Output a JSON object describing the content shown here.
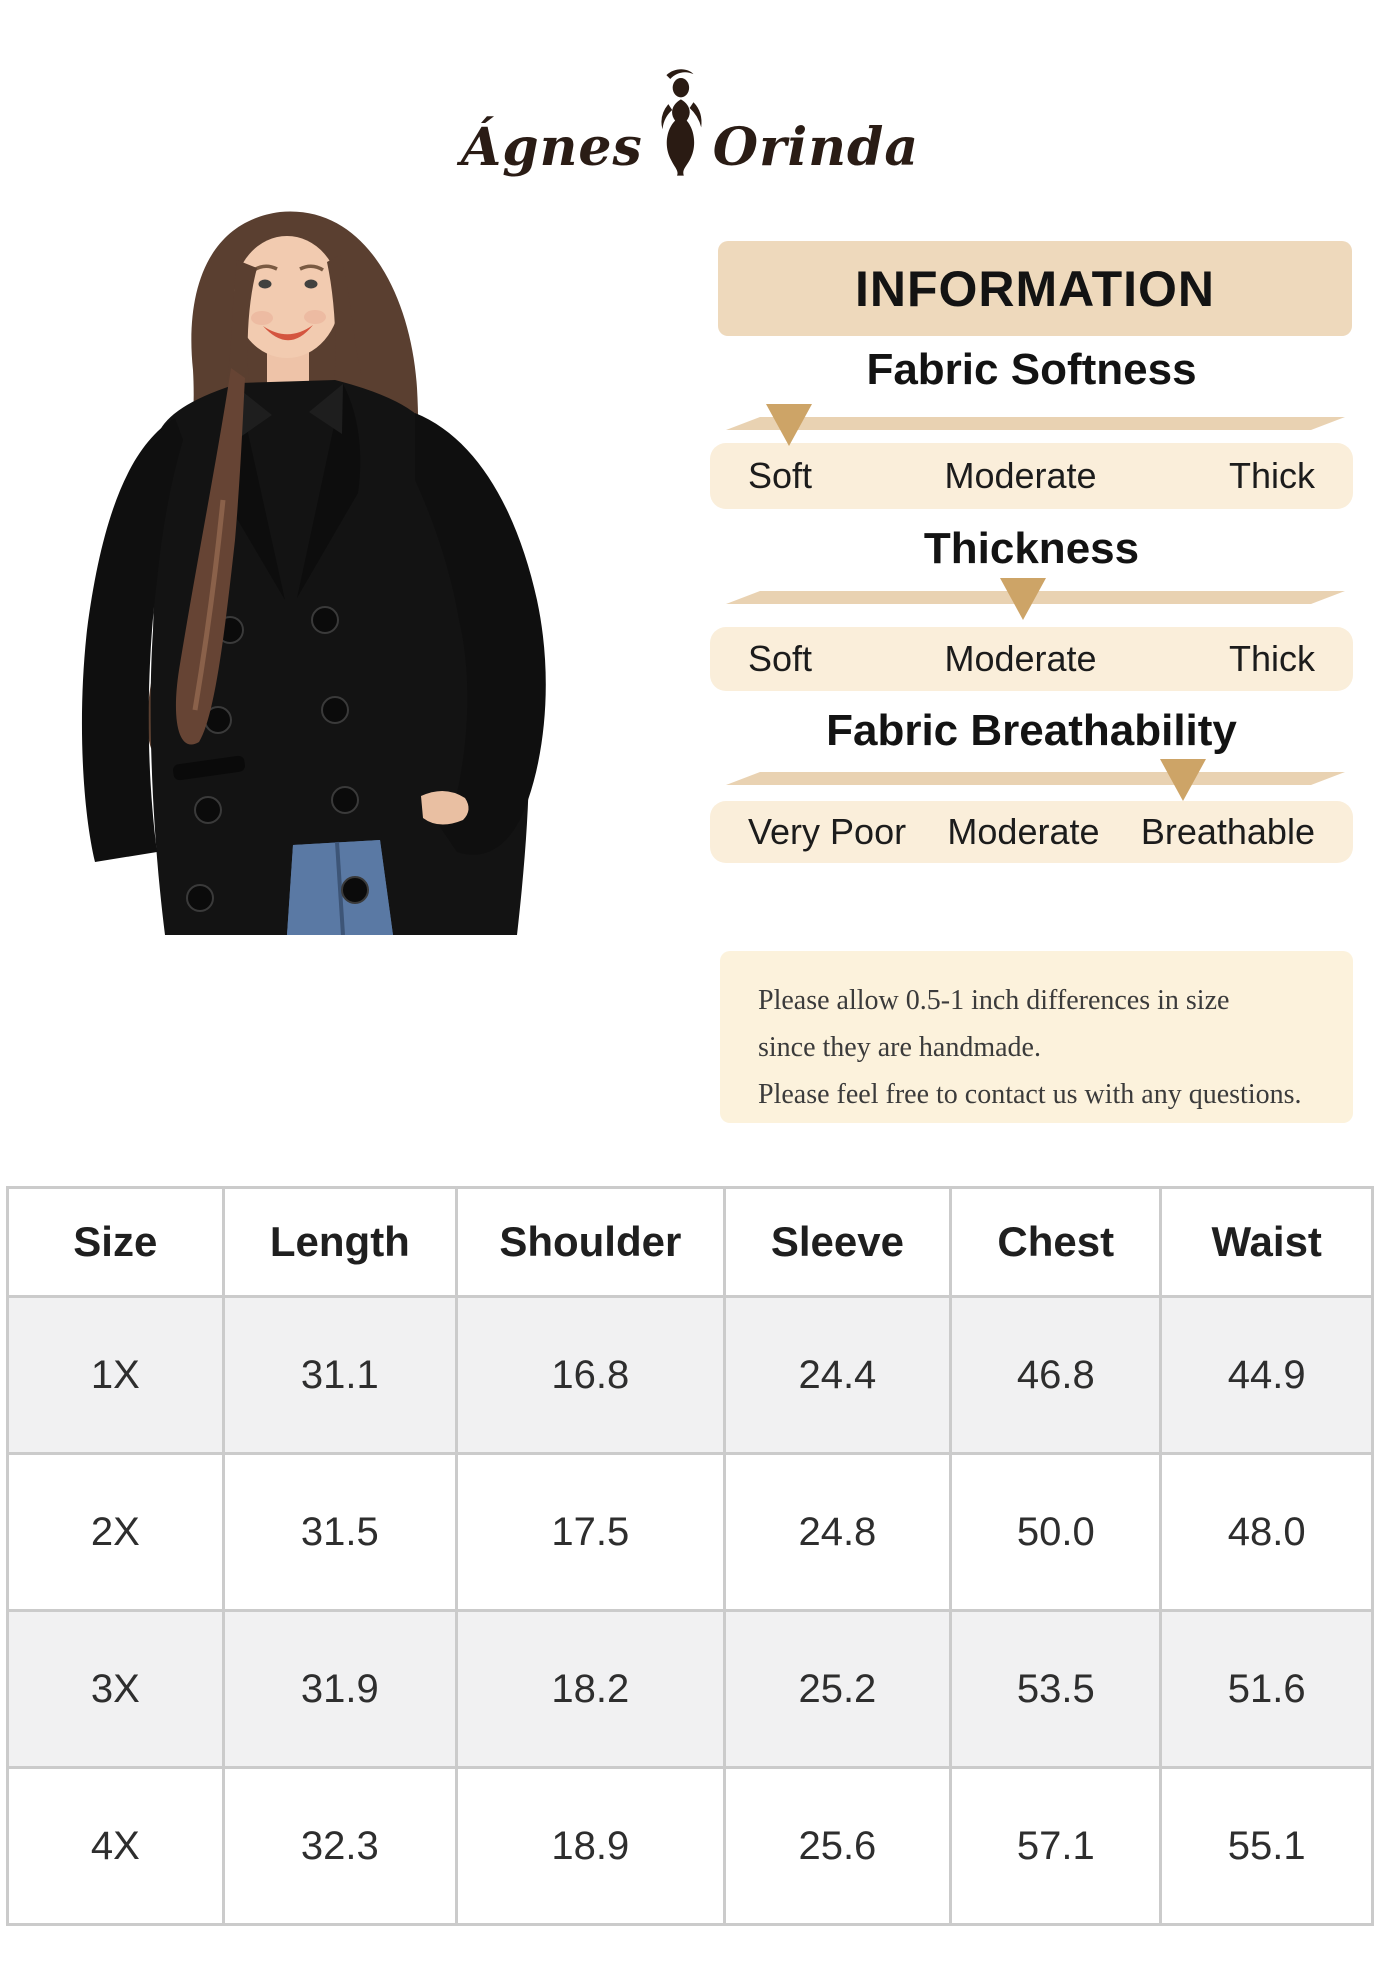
{
  "brand": {
    "name_left": "Ágnes",
    "name_right": "Orinda",
    "figure_icon": "woman-silhouette"
  },
  "info_panel": {
    "header": "INFORMATION",
    "scales": [
      {
        "title": "Fabric Softness",
        "labels": [
          "Soft",
          "Moderate",
          "Thick"
        ],
        "indicator": "Soft",
        "indicator_left_pct": 12.3
      },
      {
        "title": "Thickness",
        "labels": [
          "Soft",
          "Moderate",
          "Thick"
        ],
        "indicator": "Moderate",
        "indicator_left_pct": 48.7
      },
      {
        "title": "Fabric Breathability",
        "labels": [
          "Very Poor",
          "Moderate",
          "Breathable"
        ],
        "indicator": "Breathable",
        "indicator_left_pct": 73.6
      }
    ],
    "note_lines": [
      "Please allow 0.5-1 inch differences in size",
      "since they are handmade.",
      "Please feel free to contact us with any questions."
    ]
  },
  "size_table": {
    "columns": [
      "Size",
      "Length",
      "Shoulder",
      "Sleeve",
      "Chest",
      "Waist"
    ],
    "rows": [
      [
        "1X",
        "31.1",
        "16.8",
        "24.4",
        "46.8",
        "44.9"
      ],
      [
        "2X",
        "31.5",
        "17.5",
        "24.8",
        "50.0",
        "48.0"
      ],
      [
        "3X",
        "31.9",
        "18.2",
        "25.2",
        "53.5",
        "51.6"
      ],
      [
        "4X",
        "32.3",
        "18.9",
        "25.6",
        "57.1",
        "55.1"
      ]
    ]
  },
  "colors": {
    "header_box": "#eed9bc",
    "scale_bar": "#e9d2b2",
    "indicator_triangle": "#cda467",
    "labels_box": "#faeeda",
    "note_box": "#fcf2dc",
    "table_alt_row": "#f1f1f2",
    "table_border": "#cbcbcb",
    "logo_ink": "#2a1c15"
  }
}
